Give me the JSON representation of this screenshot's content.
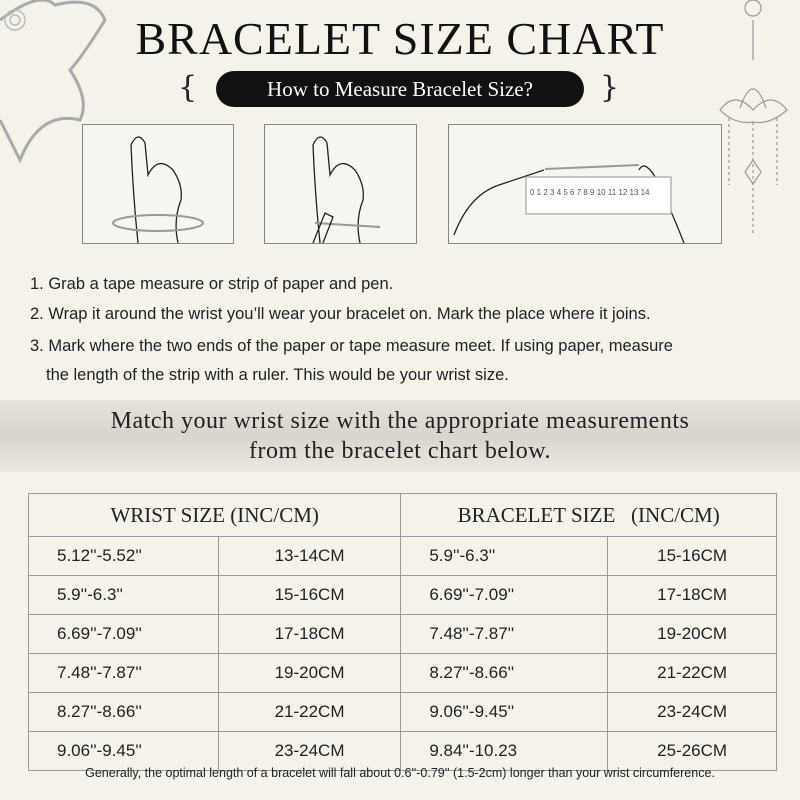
{
  "title": "BRACELET SIZE CHART",
  "subtitle": "How to Measure Bracelet Size?",
  "illustrations": {
    "ruler_numbers": "0 1 2 3 4 5 6 7 8 9 10 11 12 13 14"
  },
  "steps": [
    "1. Grab a tape measure or strip of paper and pen.",
    "2. Wrap it around the wrist you’ll wear your bracelet on. Mark the place where it joins.",
    "3. Mark where the two ends of the paper or tape measure meet. If using paper, measure",
    "the length of the strip with a ruler. This would be your wrist size."
  ],
  "band": {
    "line1": "Match your wrist size with the appropriate measurements",
    "line2": "from the bracelet chart below."
  },
  "table": {
    "headers": [
      "WRIST SIZE (INC/CM)",
      "BRACELET SIZE   (INC/CM)"
    ],
    "rows": [
      [
        "5.12''-5.52''",
        "13-14CM",
        "5.9''-6.3''",
        "15-16CM"
      ],
      [
        "5.9''-6.3''",
        "15-16CM",
        "6.69''-7.09''",
        "17-18CM"
      ],
      [
        "6.69''-7.09''",
        "17-18CM",
        "7.48''-7.87''",
        "19-20CM"
      ],
      [
        "7.48''-7.87''",
        "19-20CM",
        "8.27''-8.66''",
        "21-22CM"
      ],
      [
        "8.27''-8.66''",
        "21-22CM",
        "9.06''-9.45''",
        "23-24CM"
      ],
      [
        "9.06''-9.45''",
        "23-24CM",
        "9.84''-10.23",
        "25-26CM"
      ]
    ]
  },
  "note": "Generally, the optimal length of a bracelet will fall about 0.6''-0.79'' (1.5-2cm) longer than your wrist circumference."
}
